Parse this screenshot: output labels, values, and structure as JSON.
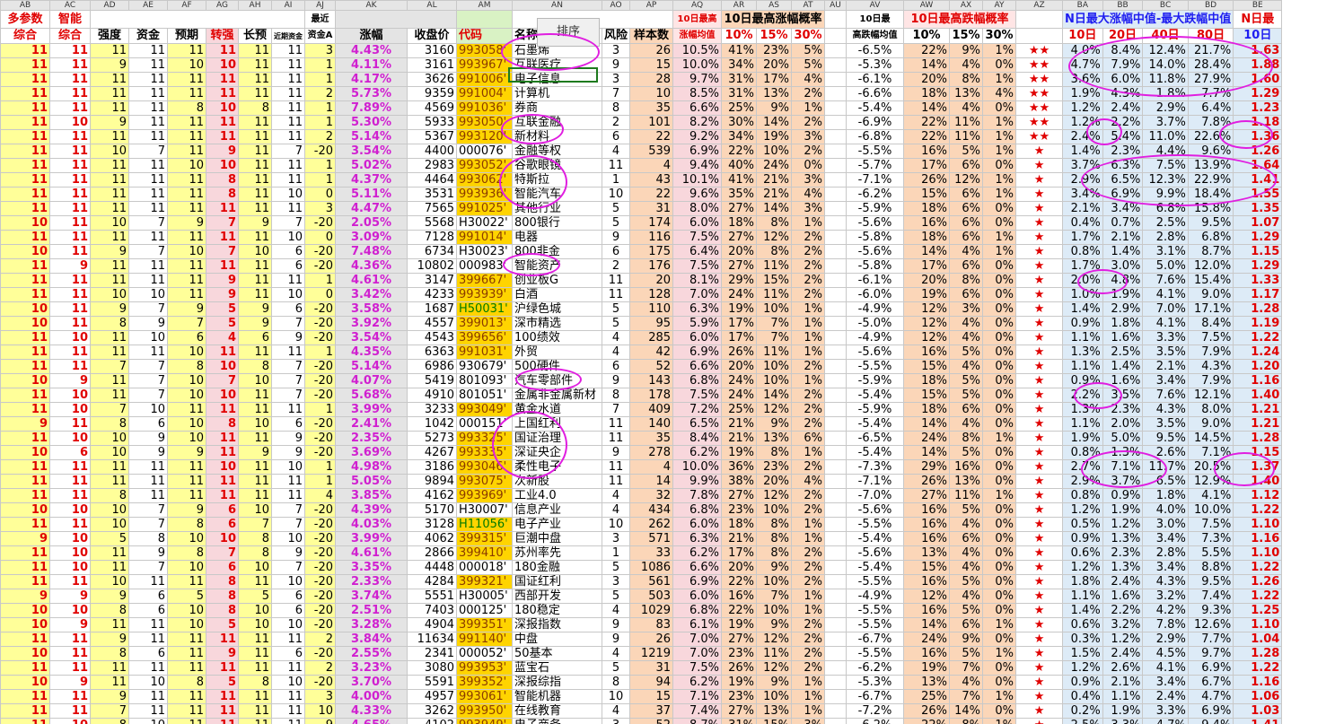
{
  "col_letters": [
    "AB",
    "AC",
    "AD",
    "AE",
    "AF",
    "AG",
    "AH",
    "AI",
    "AJ",
    "AK",
    "AL",
    "AM",
    "AN",
    "AO",
    "AP",
    "AQ",
    "AR",
    "AS",
    "AT",
    "AU",
    "AV",
    "AW",
    "AX",
    "AY",
    "AZ",
    "BA",
    "BB",
    "BC",
    "BD",
    "BE"
  ],
  "header1": {
    "h_ab": "多参数",
    "h_ac": "智能",
    "h_aj": "最近",
    "h_aq": "10日最高",
    "h_arat": "10日最高涨幅概率",
    "h_av": "10日最",
    "h_awax": "10日最高跌幅概率",
    "h_babd": "N日最大涨幅中值-最大跌幅中值",
    "h_be": "N日最"
  },
  "header2": {
    "h_ab": "综合",
    "h_ac": "综合",
    "h_ad": "强度",
    "h_ae": "资金",
    "h_af": "预期",
    "h_ag": "转强",
    "h_ah": "长预",
    "h_ai": "近期资金",
    "h_aj": "资金A",
    "h_ak": "涨幅",
    "h_al": "收盘价",
    "h_am": "代码",
    "h_an": "名称",
    "h_ao": "风险",
    "h_ap": "样本数",
    "h_aq": "涨幅均值",
    "h_ar": "10%",
    "h_as": "15%",
    "h_at": "30%",
    "h_av": "高跌幅均值",
    "h_aw": "10%",
    "h_ax": "15%",
    "h_ay": "30%",
    "h_ba": "10日",
    "h_bb": "20日",
    "h_bc": "40日",
    "h_bd": "80日",
    "h_be": "10日"
  },
  "sort_button": "排序",
  "colors": {
    "accent_red": "#e00000",
    "accent_blue": "#1e1ef0",
    "magenta": "#d020d0",
    "code_yellow": "#ffd400"
  },
  "rows": [
    [
      "11",
      "11",
      "11",
      "11",
      "11",
      "11",
      "11",
      "11",
      "3",
      "4.43%",
      "3160",
      "993058'",
      "石墨烯",
      "3",
      "26",
      "10.5%",
      "41%",
      "23%",
      "5%",
      "-6.5%",
      "22%",
      "9%",
      "1%",
      "★★",
      "4.0%",
      "8.4%",
      "12.4%",
      "21.7%",
      "1.63"
    ],
    [
      "11",
      "11",
      "9",
      "11",
      "10",
      "10",
      "11",
      "11",
      "1",
      "4.11%",
      "3161",
      "993967'",
      "互联医疗",
      "9",
      "15",
      "10.0%",
      "34%",
      "20%",
      "5%",
      "-5.3%",
      "14%",
      "4%",
      "0%",
      "★★",
      "4.7%",
      "7.9%",
      "14.0%",
      "28.4%",
      "1.88"
    ],
    [
      "11",
      "11",
      "11",
      "11",
      "11",
      "11",
      "11",
      "11",
      "1",
      "4.17%",
      "3626",
      "991006'",
      "电子信息",
      "3",
      "28",
      "9.7%",
      "31%",
      "17%",
      "4%",
      "-6.1%",
      "20%",
      "8%",
      "1%",
      "★★",
      "3.6%",
      "6.0%",
      "11.8%",
      "27.9%",
      "1.60"
    ],
    [
      "11",
      "11",
      "11",
      "11",
      "11",
      "11",
      "11",
      "11",
      "2",
      "5.73%",
      "9359",
      "991004'",
      "计算机",
      "7",
      "10",
      "8.5%",
      "31%",
      "13%",
      "2%",
      "-6.6%",
      "18%",
      "13%",
      "4%",
      "★★",
      "1.9%",
      "4.3%",
      "1.8%",
      "7.7%",
      "1.29"
    ],
    [
      "11",
      "11",
      "11",
      "11",
      "8",
      "10",
      "8",
      "11",
      "1",
      "7.89%",
      "4569",
      "991036'",
      "券商",
      "8",
      "35",
      "6.6%",
      "25%",
      "9%",
      "1%",
      "-5.4%",
      "14%",
      "4%",
      "0%",
      "★★",
      "1.2%",
      "2.4%",
      "2.9%",
      "6.4%",
      "1.23"
    ],
    [
      "11",
      "10",
      "9",
      "11",
      "11",
      "11",
      "11",
      "11",
      "1",
      "5.30%",
      "5933",
      "993050'",
      "互联金融",
      "2",
      "101",
      "8.2%",
      "30%",
      "14%",
      "2%",
      "-6.9%",
      "22%",
      "11%",
      "1%",
      "★★",
      "1.2%",
      "2.2%",
      "3.7%",
      "7.8%",
      "1.18"
    ],
    [
      "11",
      "11",
      "11",
      "11",
      "11",
      "11",
      "11",
      "11",
      "2",
      "5.14%",
      "5367",
      "993120'",
      "新材料",
      "6",
      "22",
      "9.2%",
      "34%",
      "19%",
      "3%",
      "-6.8%",
      "22%",
      "11%",
      "1%",
      "★★",
      "2.4%",
      "5.4%",
      "11.0%",
      "22.6%",
      "1.36"
    ],
    [
      "11",
      "11",
      "10",
      "7",
      "11",
      "9",
      "11",
      "7",
      "-20",
      "3.54%",
      "4400",
      "000076'",
      "金融等权",
      "4",
      "539",
      "6.9%",
      "22%",
      "10%",
      "2%",
      "-5.5%",
      "16%",
      "5%",
      "1%",
      "★",
      "1.4%",
      "2.3%",
      "4.4%",
      "9.6%",
      "1.26"
    ],
    [
      "11",
      "11",
      "11",
      "11",
      "10",
      "10",
      "11",
      "11",
      "1",
      "5.02%",
      "2983",
      "993052'",
      "谷歌眼镜",
      "11",
      "4",
      "9.4%",
      "40%",
      "24%",
      "0%",
      "-5.7%",
      "17%",
      "6%",
      "0%",
      "★",
      "3.7%",
      "6.3%",
      "7.5%",
      "13.9%",
      "1.64"
    ],
    [
      "11",
      "11",
      "11",
      "11",
      "11",
      "8",
      "11",
      "11",
      "1",
      "4.37%",
      "4464",
      "993062'",
      "特斯拉",
      "1",
      "43",
      "10.1%",
      "41%",
      "21%",
      "3%",
      "-7.1%",
      "26%",
      "12%",
      "1%",
      "★",
      "2.9%",
      "6.5%",
      "12.3%",
      "22.9%",
      "1.41"
    ],
    [
      "11",
      "11",
      "11",
      "11",
      "11",
      "8",
      "11",
      "10",
      "0",
      "5.11%",
      "3531",
      "993936'",
      "智能汽车",
      "10",
      "22",
      "9.6%",
      "35%",
      "21%",
      "4%",
      "-6.2%",
      "15%",
      "6%",
      "1%",
      "★",
      "3.4%",
      "6.9%",
      "9.9%",
      "18.4%",
      "1.55"
    ],
    [
      "11",
      "11",
      "11",
      "11",
      "11",
      "11",
      "11",
      "11",
      "3",
      "4.47%",
      "7565",
      "991025'",
      "其他行业",
      "5",
      "31",
      "8.0%",
      "27%",
      "14%",
      "3%",
      "-5.9%",
      "18%",
      "6%",
      "0%",
      "★",
      "2.1%",
      "3.4%",
      "6.8%",
      "15.8%",
      "1.35"
    ],
    [
      "10",
      "11",
      "10",
      "7",
      "9",
      "7",
      "9",
      "7",
      "-20",
      "2.05%",
      "5568",
      "H30022'",
      "800银行",
      "5",
      "174",
      "6.0%",
      "18%",
      "8%",
      "1%",
      "-5.6%",
      "16%",
      "6%",
      "0%",
      "★",
      "0.4%",
      "0.7%",
      "2.5%",
      "9.5%",
      "1.07"
    ],
    [
      "11",
      "11",
      "11",
      "11",
      "11",
      "11",
      "11",
      "10",
      "0",
      "3.09%",
      "7128",
      "991014'",
      "电器",
      "9",
      "116",
      "7.5%",
      "27%",
      "12%",
      "2%",
      "-5.8%",
      "18%",
      "6%",
      "1%",
      "★",
      "1.7%",
      "2.1%",
      "2.8%",
      "6.8%",
      "1.29"
    ],
    [
      "10",
      "11",
      "9",
      "7",
      "10",
      "7",
      "10",
      "6",
      "-20",
      "7.48%",
      "6734",
      "H30023'",
      "800非金",
      "6",
      "175",
      "6.4%",
      "20%",
      "8%",
      "2%",
      "-5.6%",
      "14%",
      "4%",
      "1%",
      "★",
      "0.8%",
      "1.4%",
      "3.1%",
      "8.7%",
      "1.15"
    ],
    [
      "11",
      "9",
      "11",
      "11",
      "11",
      "11",
      "11",
      "6",
      "-20",
      "4.36%",
      "10802",
      "000983'",
      "智能资产",
      "2",
      "176",
      "7.5%",
      "27%",
      "11%",
      "2%",
      "-5.8%",
      "17%",
      "6%",
      "0%",
      "★",
      "1.7%",
      "3.0%",
      "5.0%",
      "12.0%",
      "1.29"
    ],
    [
      "11",
      "11",
      "11",
      "11",
      "11",
      "9",
      "11",
      "11",
      "1",
      "4.61%",
      "3147",
      "399667'",
      "创业板G",
      "11",
      "20",
      "8.1%",
      "29%",
      "15%",
      "2%",
      "-6.1%",
      "20%",
      "8%",
      "0%",
      "★",
      "2.0%",
      "4.8%",
      "7.6%",
      "15.4%",
      "1.33"
    ],
    [
      "11",
      "11",
      "10",
      "10",
      "11",
      "9",
      "11",
      "10",
      "0",
      "3.42%",
      "4233",
      "993939'",
      "白酒",
      "11",
      "128",
      "7.0%",
      "24%",
      "11%",
      "2%",
      "-6.0%",
      "19%",
      "6%",
      "0%",
      "★",
      "1.0%",
      "1.9%",
      "4.1%",
      "9.0%",
      "1.17"
    ],
    [
      "10",
      "11",
      "9",
      "7",
      "9",
      "5",
      "9",
      "6",
      "-20",
      "3.58%",
      "1687",
      "H50031'",
      "沪绿色城",
      "5",
      "110",
      "6.3%",
      "19%",
      "10%",
      "1%",
      "-4.9%",
      "12%",
      "3%",
      "0%",
      "★",
      "1.4%",
      "2.9%",
      "7.0%",
      "17.1%",
      "1.28"
    ],
    [
      "10",
      "11",
      "8",
      "9",
      "7",
      "5",
      "9",
      "7",
      "-20",
      "3.92%",
      "4557",
      "399013'",
      "深市精选",
      "5",
      "95",
      "5.9%",
      "17%",
      "7%",
      "1%",
      "-5.0%",
      "12%",
      "4%",
      "0%",
      "★",
      "0.9%",
      "1.8%",
      "4.1%",
      "8.4%",
      "1.19"
    ],
    [
      "11",
      "10",
      "11",
      "10",
      "6",
      "4",
      "6",
      "9",
      "-20",
      "3.54%",
      "4543",
      "399656'",
      "100绩效",
      "4",
      "285",
      "6.0%",
      "17%",
      "7%",
      "1%",
      "-4.9%",
      "12%",
      "4%",
      "0%",
      "★",
      "1.1%",
      "1.6%",
      "3.3%",
      "7.5%",
      "1.22"
    ],
    [
      "11",
      "11",
      "11",
      "11",
      "10",
      "11",
      "11",
      "11",
      "1",
      "4.35%",
      "6363",
      "991031'",
      "外贸",
      "4",
      "42",
      "6.9%",
      "26%",
      "11%",
      "1%",
      "-5.6%",
      "16%",
      "5%",
      "0%",
      "★",
      "1.3%",
      "2.5%",
      "3.5%",
      "7.9%",
      "1.24"
    ],
    [
      "11",
      "11",
      "7",
      "7",
      "8",
      "10",
      "8",
      "7",
      "-20",
      "5.14%",
      "6986",
      "930679'",
      "500硬件",
      "6",
      "52",
      "6.6%",
      "20%",
      "10%",
      "2%",
      "-5.5%",
      "15%",
      "4%",
      "0%",
      "★",
      "1.1%",
      "1.4%",
      "2.1%",
      "4.3%",
      "1.20"
    ],
    [
      "10",
      "9",
      "11",
      "7",
      "10",
      "7",
      "10",
      "7",
      "-20",
      "4.07%",
      "5419",
      "801093'",
      "汽车零部件",
      "9",
      "143",
      "6.8%",
      "24%",
      "10%",
      "1%",
      "-5.9%",
      "18%",
      "5%",
      "0%",
      "★",
      "0.9%",
      "1.6%",
      "3.4%",
      "7.9%",
      "1.16"
    ],
    [
      "11",
      "10",
      "11",
      "7",
      "10",
      "10",
      "11",
      "7",
      "-20",
      "5.68%",
      "4910",
      "801051'",
      "金属非金属新材",
      "8",
      "178",
      "7.5%",
      "24%",
      "14%",
      "2%",
      "-5.4%",
      "15%",
      "5%",
      "0%",
      "★",
      "2.2%",
      "3.5%",
      "7.6%",
      "12.1%",
      "1.40"
    ],
    [
      "11",
      "10",
      "7",
      "10",
      "11",
      "11",
      "11",
      "11",
      "1",
      "3.99%",
      "3233",
      "993049'",
      "黄金水道",
      "7",
      "409",
      "7.2%",
      "25%",
      "12%",
      "2%",
      "-5.9%",
      "18%",
      "6%",
      "0%",
      "★",
      "1.3%",
      "2.3%",
      "4.3%",
      "8.0%",
      "1.21"
    ],
    [
      "9",
      "11",
      "8",
      "6",
      "10",
      "8",
      "10",
      "6",
      "-20",
      "2.41%",
      "1042",
      "000151'",
      "上国红利",
      "11",
      "140",
      "6.5%",
      "21%",
      "9%",
      "2%",
      "-5.4%",
      "14%",
      "4%",
      "0%",
      "★",
      "1.1%",
      "2.0%",
      "3.5%",
      "9.0%",
      "1.21"
    ],
    [
      "11",
      "10",
      "10",
      "9",
      "10",
      "11",
      "11",
      "9",
      "-20",
      "2.35%",
      "5273",
      "993325'",
      "国证治理",
      "11",
      "35",
      "8.4%",
      "21%",
      "13%",
      "6%",
      "-6.5%",
      "24%",
      "8%",
      "1%",
      "★",
      "1.9%",
      "5.0%",
      "9.5%",
      "14.5%",
      "1.28"
    ],
    [
      "10",
      "6",
      "10",
      "9",
      "9",
      "11",
      "9",
      "9",
      "-20",
      "3.69%",
      "4267",
      "993335'",
      "深证央企",
      "9",
      "278",
      "6.2%",
      "19%",
      "8%",
      "1%",
      "-5.4%",
      "14%",
      "5%",
      "0%",
      "★",
      "0.8%",
      "1.3%",
      "2.6%",
      "7.1%",
      "1.15"
    ],
    [
      "11",
      "11",
      "11",
      "11",
      "11",
      "10",
      "11",
      "10",
      "1",
      "4.98%",
      "3186",
      "993046'",
      "柔性电子",
      "11",
      "4",
      "10.0%",
      "36%",
      "23%",
      "2%",
      "-7.3%",
      "29%",
      "16%",
      "0%",
      "★",
      "2.7%",
      "7.1%",
      "11.7%",
      "20.5%",
      "1.37"
    ],
    [
      "11",
      "11",
      "11",
      "11",
      "11",
      "11",
      "11",
      "11",
      "1",
      "5.05%",
      "9894",
      "993075'",
      "次新股",
      "11",
      "14",
      "9.9%",
      "38%",
      "20%",
      "4%",
      "-7.1%",
      "26%",
      "13%",
      "0%",
      "★",
      "2.9%",
      "3.7%",
      "6.5%",
      "12.9%",
      "1.40"
    ],
    [
      "11",
      "11",
      "8",
      "11",
      "11",
      "11",
      "11",
      "11",
      "4",
      "3.85%",
      "4162",
      "993969'",
      "工业4.0",
      "4",
      "32",
      "7.8%",
      "27%",
      "12%",
      "2%",
      "-7.0%",
      "27%",
      "11%",
      "1%",
      "★",
      "0.8%",
      "0.9%",
      "1.8%",
      "4.1%",
      "1.12"
    ],
    [
      "10",
      "10",
      "10",
      "7",
      "9",
      "6",
      "10",
      "7",
      "-20",
      "4.39%",
      "5170",
      "H30007'",
      "信息产业",
      "4",
      "434",
      "6.8%",
      "23%",
      "10%",
      "2%",
      "-5.6%",
      "16%",
      "5%",
      "0%",
      "★",
      "1.2%",
      "1.9%",
      "4.0%",
      "10.0%",
      "1.22"
    ],
    [
      "11",
      "11",
      "10",
      "7",
      "8",
      "6",
      "7",
      "7",
      "-20",
      "4.03%",
      "3128",
      "H11056'",
      "电子产业",
      "10",
      "262",
      "6.0%",
      "18%",
      "8%",
      "1%",
      "-5.5%",
      "16%",
      "4%",
      "0%",
      "★",
      "0.5%",
      "1.2%",
      "3.0%",
      "7.5%",
      "1.10"
    ],
    [
      "9",
      "10",
      "5",
      "8",
      "10",
      "10",
      "8",
      "10",
      "-20",
      "3.99%",
      "4062",
      "399315'",
      "巨潮中盘",
      "3",
      "571",
      "6.3%",
      "21%",
      "8%",
      "1%",
      "-5.4%",
      "16%",
      "6%",
      "0%",
      "★",
      "0.9%",
      "1.3%",
      "3.4%",
      "7.3%",
      "1.16"
    ],
    [
      "11",
      "10",
      "11",
      "9",
      "8",
      "7",
      "8",
      "9",
      "-20",
      "4.61%",
      "2866",
      "399410'",
      "苏州率先",
      "1",
      "33",
      "6.2%",
      "17%",
      "8%",
      "2%",
      "-5.6%",
      "13%",
      "4%",
      "0%",
      "★",
      "0.6%",
      "2.3%",
      "2.8%",
      "5.5%",
      "1.10"
    ],
    [
      "11",
      "10",
      "11",
      "7",
      "10",
      "6",
      "10",
      "7",
      "-20",
      "3.35%",
      "4448",
      "000018'",
      "180金融",
      "5",
      "1086",
      "6.6%",
      "20%",
      "9%",
      "2%",
      "-5.4%",
      "15%",
      "4%",
      "0%",
      "★",
      "1.2%",
      "1.3%",
      "3.4%",
      "8.8%",
      "1.22"
    ],
    [
      "11",
      "11",
      "10",
      "11",
      "11",
      "8",
      "11",
      "10",
      "-20",
      "2.33%",
      "4284",
      "399321'",
      "国证红利",
      "3",
      "561",
      "6.9%",
      "22%",
      "10%",
      "2%",
      "-5.5%",
      "16%",
      "5%",
      "0%",
      "★",
      "1.8%",
      "2.4%",
      "4.3%",
      "9.5%",
      "1.26"
    ],
    [
      "9",
      "9",
      "9",
      "6",
      "5",
      "8",
      "5",
      "6",
      "-20",
      "3.74%",
      "5551",
      "H30005'",
      "西部开发",
      "5",
      "503",
      "6.0%",
      "16%",
      "7%",
      "1%",
      "-4.9%",
      "12%",
      "4%",
      "0%",
      "★",
      "1.1%",
      "1.6%",
      "3.2%",
      "7.4%",
      "1.22"
    ],
    [
      "10",
      "10",
      "8",
      "6",
      "10",
      "8",
      "10",
      "6",
      "-20",
      "2.51%",
      "7403",
      "000125'",
      "180稳定",
      "4",
      "1029",
      "6.8%",
      "22%",
      "10%",
      "1%",
      "-5.5%",
      "16%",
      "5%",
      "0%",
      "★",
      "1.4%",
      "2.2%",
      "4.2%",
      "9.3%",
      "1.25"
    ],
    [
      "10",
      "9",
      "11",
      "11",
      "10",
      "5",
      "10",
      "10",
      "-20",
      "3.28%",
      "4904",
      "399351'",
      "深报指数",
      "9",
      "83",
      "6.1%",
      "19%",
      "9%",
      "2%",
      "-5.5%",
      "14%",
      "6%",
      "1%",
      "★",
      "0.6%",
      "3.2%",
      "7.8%",
      "12.6%",
      "1.10"
    ],
    [
      "11",
      "11",
      "9",
      "11",
      "11",
      "11",
      "11",
      "11",
      "2",
      "3.84%",
      "11634",
      "991140'",
      "中盘",
      "9",
      "26",
      "7.0%",
      "27%",
      "12%",
      "2%",
      "-6.7%",
      "24%",
      "9%",
      "0%",
      "★",
      "0.3%",
      "1.2%",
      "2.9%",
      "7.7%",
      "1.04"
    ],
    [
      "10",
      "11",
      "8",
      "6",
      "11",
      "9",
      "11",
      "6",
      "-20",
      "2.55%",
      "2341",
      "000052'",
      "50基本",
      "4",
      "1219",
      "7.0%",
      "23%",
      "11%",
      "2%",
      "-5.5%",
      "16%",
      "5%",
      "1%",
      "★",
      "1.5%",
      "2.4%",
      "4.5%",
      "9.7%",
      "1.28"
    ],
    [
      "11",
      "11",
      "11",
      "11",
      "11",
      "11",
      "11",
      "11",
      "2",
      "3.23%",
      "3080",
      "993953'",
      "蓝宝石",
      "5",
      "31",
      "7.5%",
      "26%",
      "12%",
      "2%",
      "-6.2%",
      "19%",
      "7%",
      "0%",
      "★",
      "1.2%",
      "2.6%",
      "4.1%",
      "6.9%",
      "1.22"
    ],
    [
      "10",
      "9",
      "11",
      "10",
      "8",
      "5",
      "8",
      "10",
      "-20",
      "3.70%",
      "5591",
      "399352'",
      "深报综指",
      "8",
      "94",
      "6.2%",
      "19%",
      "9%",
      "1%",
      "-5.3%",
      "13%",
      "4%",
      "0%",
      "★",
      "0.9%",
      "2.1%",
      "3.4%",
      "6.7%",
      "1.16"
    ],
    [
      "11",
      "11",
      "9",
      "11",
      "11",
      "11",
      "11",
      "11",
      "3",
      "4.00%",
      "4957",
      "993061'",
      "智能机器",
      "10",
      "15",
      "7.1%",
      "23%",
      "10%",
      "1%",
      "-6.7%",
      "25%",
      "7%",
      "1%",
      "★",
      "0.4%",
      "1.1%",
      "2.4%",
      "4.7%",
      "1.06"
    ],
    [
      "11",
      "11",
      "7",
      "11",
      "11",
      "11",
      "11",
      "11",
      "10",
      "4.33%",
      "3262",
      "993950'",
      "在线教育",
      "4",
      "37",
      "7.4%",
      "27%",
      "13%",
      "1%",
      "-7.2%",
      "26%",
      "14%",
      "0%",
      "★",
      "0.2%",
      "1.9%",
      "3.3%",
      "6.9%",
      "1.03"
    ],
    [
      "11",
      "10",
      "8",
      "10",
      "11",
      "11",
      "11",
      "11",
      "9",
      "4.65%",
      "4102",
      "993949'",
      "电子商务",
      "3",
      "52",
      "8.7%",
      "31%",
      "15%",
      "3%",
      "-6.2%",
      "22%",
      "8%",
      "1%",
      "★",
      "2.5%",
      "3.3%",
      "4.7%",
      "9.4%",
      "1.41"
    ]
  ]
}
